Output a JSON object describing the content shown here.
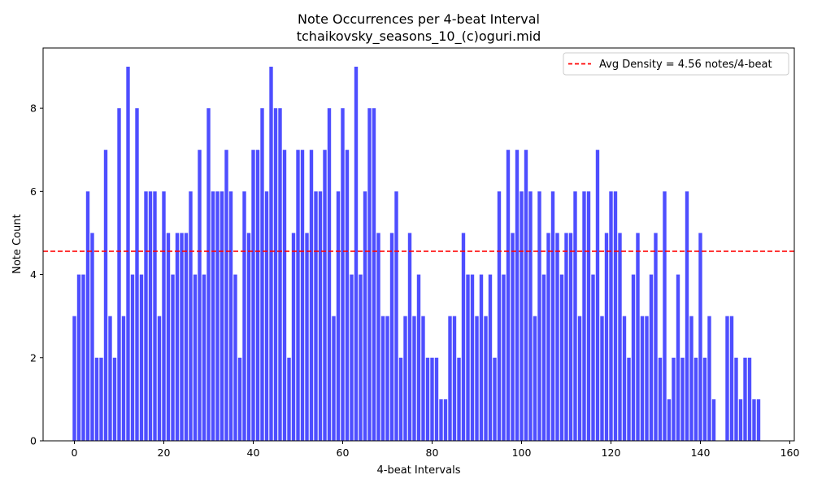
{
  "chart_data": {
    "type": "bar",
    "title": "Note Occurrences per 4-beat Interval",
    "subtitle": "tchaikovsky_seasons_10_(c)oguri.mid",
    "xlabel": "4-beat Intervals",
    "ylabel": "Note Count",
    "xlim": [
      -7,
      161
    ],
    "ylim": [
      0,
      9.45
    ],
    "xticks": [
      0,
      20,
      40,
      60,
      80,
      100,
      120,
      140,
      160
    ],
    "yticks": [
      0,
      2,
      4,
      6,
      8
    ],
    "bar_color": "#4444ff",
    "reference_line": {
      "value": 4.56,
      "color": "#ff0000",
      "style": "dashed",
      "label": "Avg Density = 4.56 notes/4-beat"
    },
    "legend_position": "top-right",
    "grid": false,
    "x": [
      0,
      1,
      2,
      3,
      4,
      5,
      6,
      7,
      8,
      9,
      10,
      11,
      12,
      13,
      14,
      15,
      16,
      17,
      18,
      19,
      20,
      21,
      22,
      23,
      24,
      25,
      26,
      27,
      28,
      29,
      30,
      31,
      32,
      33,
      34,
      35,
      36,
      37,
      38,
      39,
      40,
      41,
      42,
      43,
      44,
      45,
      46,
      47,
      48,
      49,
      50,
      51,
      52,
      53,
      54,
      55,
      56,
      57,
      58,
      59,
      60,
      61,
      62,
      63,
      64,
      65,
      66,
      67,
      68,
      69,
      70,
      71,
      72,
      73,
      74,
      75,
      76,
      77,
      78,
      79,
      80,
      81,
      82,
      83,
      84,
      85,
      86,
      87,
      88,
      89,
      90,
      91,
      92,
      93,
      94,
      95,
      96,
      97,
      98,
      99,
      100,
      101,
      102,
      103,
      104,
      105,
      106,
      107,
      108,
      109,
      110,
      111,
      112,
      113,
      114,
      115,
      116,
      117,
      118,
      119,
      120,
      121,
      122,
      123,
      124,
      125,
      126,
      127,
      128,
      129,
      130,
      131,
      132,
      133,
      134,
      135,
      136,
      137,
      138,
      139,
      140,
      141,
      142,
      143,
      144,
      145,
      146,
      147,
      148,
      149,
      150,
      151,
      152,
      153
    ],
    "values": [
      3,
      4,
      4,
      6,
      5,
      2,
      2,
      7,
      3,
      2,
      8,
      3,
      9,
      4,
      8,
      4,
      6,
      6,
      6,
      3,
      6,
      5,
      4,
      5,
      5,
      5,
      6,
      4,
      7,
      4,
      8,
      6,
      6,
      6,
      7,
      6,
      4,
      2,
      6,
      5,
      7,
      7,
      8,
      6,
      9,
      8,
      8,
      7,
      2,
      5,
      7,
      7,
      5,
      7,
      6,
      6,
      7,
      8,
      3,
      6,
      8,
      7,
      4,
      9,
      4,
      6,
      8,
      8,
      5,
      3,
      3,
      5,
      6,
      2,
      3,
      5,
      3,
      4,
      3,
      2,
      2,
      2,
      1,
      1,
      3,
      3,
      2,
      5,
      4,
      4,
      3,
      4,
      3,
      4,
      2,
      6,
      4,
      7,
      5,
      7,
      6,
      7,
      6,
      3,
      6,
      4,
      5,
      6,
      5,
      4,
      5,
      5,
      6,
      3,
      6,
      6,
      4,
      7,
      3,
      5,
      6,
      6,
      5,
      3,
      2,
      4,
      5,
      3,
      3,
      4,
      5,
      2,
      6,
      1,
      2,
      4,
      2,
      6,
      3,
      2,
      5,
      2,
      3,
      1,
      0,
      0,
      3,
      3,
      2,
      1,
      2,
      2,
      1,
      1
    ]
  }
}
